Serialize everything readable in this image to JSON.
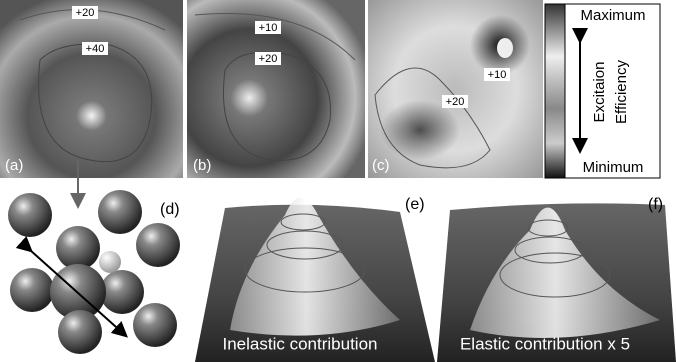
{
  "panels": [
    {
      "label": "(a)",
      "contours": [
        "+20",
        "+40"
      ]
    },
    {
      "label": "(b)",
      "contours": [
        "+10",
        "+20"
      ]
    },
    {
      "label": "(c)",
      "contours": [
        "+10",
        "+20"
      ]
    }
  ],
  "colorbar": {
    "max": "Maximum",
    "min": "Minimum",
    "title": [
      "Excitaion",
      "Efficiency"
    ]
  },
  "cluster": {
    "label": "(d)"
  },
  "surfaces": [
    {
      "label": "(e)",
      "caption": "Inelastic contribution"
    },
    {
      "label": "(f)",
      "caption": "Elastic contribution x 5"
    }
  ]
}
